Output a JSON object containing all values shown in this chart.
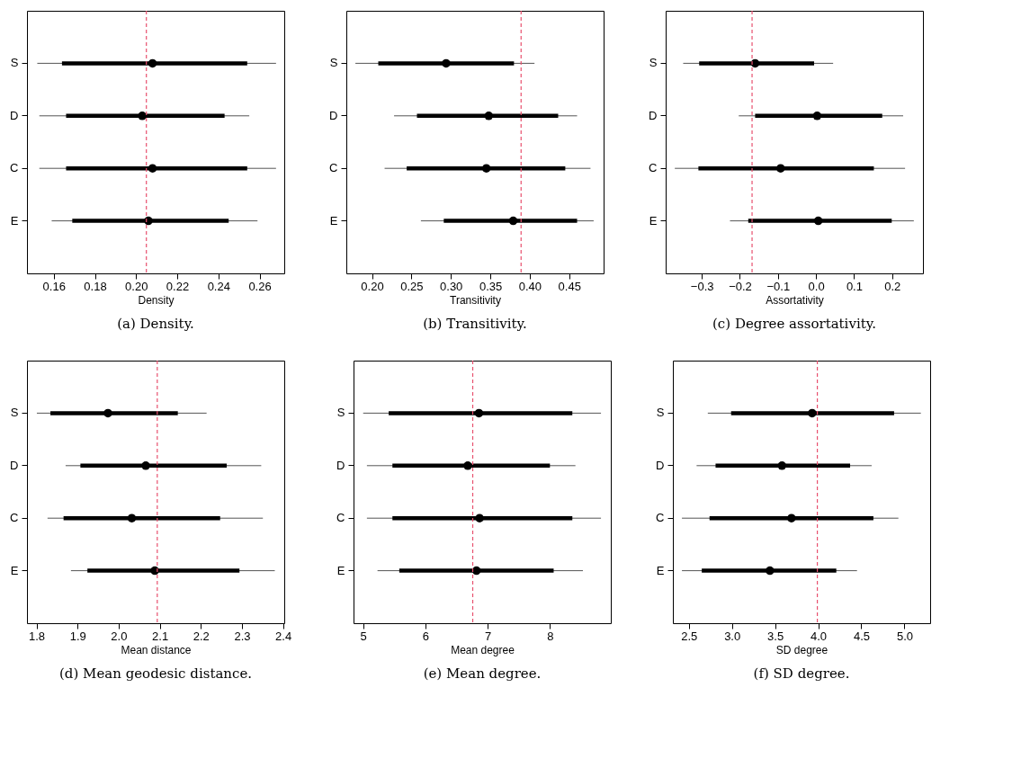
{
  "chart_data": [
    {
      "type": "box",
      "orientation": "horizontal",
      "categories": [
        "S",
        "D",
        "C",
        "E"
      ],
      "xlabel": "Density",
      "xlim": [
        0.147,
        0.272
      ],
      "xticks": [
        0.16,
        0.18,
        {
          "value": 0.2,
          "label": "0.20"
        },
        0.22,
        0.24,
        0.26
      ],
      "annotations": [
        "(a) Density."
      ],
      "ref_lines": [
        {
          "axis": "x",
          "value": 0.205,
          "color": "#e8506e",
          "line_style": "dashed"
        }
      ],
      "boxes": [
        {
          "low": 0.152,
          "q1": 0.164,
          "median": 0.208,
          "q3": 0.254,
          "high": 0.268
        },
        {
          "low": 0.153,
          "q1": 0.166,
          "median": 0.203,
          "q3": 0.243,
          "high": 0.255
        },
        {
          "low": 0.153,
          "q1": 0.166,
          "median": 0.208,
          "q3": 0.254,
          "high": 0.268
        },
        {
          "low": 0.159,
          "q1": 0.169,
          "median": 0.206,
          "q3": 0.245,
          "high": 0.259
        }
      ]
    },
    {
      "type": "box",
      "orientation": "horizontal",
      "categories": [
        "S",
        "D",
        "C",
        "E"
      ],
      "xlabel": "Transitivity",
      "xlim": [
        0.1675,
        0.4936
      ],
      "xticks": [
        {
          "value": 0.2,
          "label": "0.20"
        },
        0.25,
        {
          "value": 0.3,
          "label": "0.30"
        },
        0.35,
        {
          "value": 0.4,
          "label": "0.40"
        },
        0.45
      ],
      "annotations": [
        "(b) Transitivity."
      ],
      "ref_lines": [
        {
          "axis": "x",
          "value": 0.389,
          "color": "#e8506e",
          "line_style": "dashed"
        }
      ],
      "boxes": [
        {
          "low": 0.179,
          "q1": 0.208,
          "median": 0.294,
          "q3": 0.38,
          "high": 0.406
        },
        {
          "low": 0.228,
          "q1": 0.257,
          "median": 0.348,
          "q3": 0.436,
          "high": 0.46
        },
        {
          "low": 0.216,
          "q1": 0.244,
          "median": 0.345,
          "q3": 0.445,
          "high": 0.477
        },
        {
          "low": 0.262,
          "q1": 0.291,
          "median": 0.379,
          "q3": 0.46,
          "high": 0.481
        }
      ]
    },
    {
      "type": "box",
      "orientation": "horizontal",
      "categories": [
        "S",
        "D",
        "C",
        "E"
      ],
      "xlabel": "Assortativity",
      "xlim": [
        -0.395,
        0.281
      ],
      "xticks": [
        {
          "value": -0.3,
          "label": "−0.3"
        },
        {
          "value": -0.2,
          "label": "−0.2"
        },
        {
          "value": -0.1,
          "label": "−0.1"
        },
        {
          "value": 0,
          "label": "0.0"
        },
        0.1,
        0.2
      ],
      "annotations": [
        "(c) Degree assortativity."
      ],
      "ref_lines": [
        {
          "axis": "x",
          "value": -0.168,
          "color": "#e8506e",
          "line_style": "dashed"
        }
      ],
      "boxes": [
        {
          "low": -0.349,
          "q1": -0.307,
          "median": -0.16,
          "q3": -0.005,
          "high": 0.045
        },
        {
          "low": -0.203,
          "q1": -0.16,
          "median": 0.003,
          "q3": 0.174,
          "high": 0.229
        },
        {
          "low": -0.371,
          "q1": -0.309,
          "median": -0.093,
          "q3": 0.152,
          "high": 0.234
        },
        {
          "low": -0.226,
          "q1": -0.178,
          "median": 0.006,
          "q3": 0.199,
          "high": 0.257
        }
      ]
    },
    {
      "type": "box",
      "orientation": "horizontal",
      "categories": [
        "S",
        "D",
        "C",
        "E"
      ],
      "xlabel": "Mean distance",
      "xlim": [
        1.777,
        2.403
      ],
      "xticks": [
        1.8,
        1.9,
        {
          "value": 2,
          "label": "2.0"
        },
        2.1,
        2.2,
        2.3,
        2.4
      ],
      "annotations": [
        "(d) Mean geodesic distance."
      ],
      "ref_lines": [
        {
          "axis": "x",
          "value": 2.094,
          "color": "#e8506e",
          "line_style": "dashed"
        }
      ],
      "boxes": [
        {
          "low": 1.801,
          "q1": 1.834,
          "median": 1.974,
          "q3": 2.144,
          "high": 2.214
        },
        {
          "low": 1.871,
          "q1": 1.907,
          "median": 2.066,
          "q3": 2.263,
          "high": 2.347
        },
        {
          "low": 1.827,
          "q1": 1.866,
          "median": 2.032,
          "q3": 2.247,
          "high": 2.351
        },
        {
          "low": 1.884,
          "q1": 1.924,
          "median": 2.088,
          "q3": 2.294,
          "high": 2.38
        }
      ]
    },
    {
      "type": "box",
      "orientation": "horizontal",
      "categories": [
        "S",
        "D",
        "C",
        "E"
      ],
      "xlabel": "Mean degree",
      "xlim": [
        4.845,
        8.978
      ],
      "xticks": [
        5,
        6,
        7,
        8
      ],
      "annotations": [
        "(e) Mean degree."
      ],
      "ref_lines": [
        {
          "axis": "x",
          "value": 6.76,
          "color": "#e8506e",
          "line_style": "dashed"
        }
      ],
      "boxes": [
        {
          "low": 5.0,
          "q1": 5.41,
          "median": 6.86,
          "q3": 8.36,
          "high": 8.82
        },
        {
          "low": 5.06,
          "q1": 5.47,
          "median": 6.68,
          "q3": 8.0,
          "high": 8.41
        },
        {
          "low": 5.06,
          "q1": 5.47,
          "median": 6.87,
          "q3": 8.36,
          "high": 8.82
        },
        {
          "low": 5.23,
          "q1": 5.58,
          "median": 6.82,
          "q3": 8.06,
          "high": 8.53
        }
      ]
    },
    {
      "type": "box",
      "orientation": "horizontal",
      "categories": [
        "S",
        "D",
        "C",
        "E"
      ],
      "xlabel": "SD degree",
      "xlim": [
        2.315,
        5.298
      ],
      "xticks": [
        2.5,
        {
          "value": 3,
          "label": "3.0"
        },
        3.5,
        {
          "value": 4,
          "label": "4.0"
        },
        4.5,
        {
          "value": 5,
          "label": "5.0"
        }
      ],
      "annotations": [
        "(f) SD degree."
      ],
      "ref_lines": [
        {
          "axis": "x",
          "value": 3.99,
          "color": "#e8506e",
          "line_style": "dashed"
        }
      ],
      "boxes": [
        {
          "low": 2.72,
          "q1": 2.99,
          "median": 3.93,
          "q3": 4.88,
          "high": 5.19
        },
        {
          "low": 2.59,
          "q1": 2.81,
          "median": 3.58,
          "q3": 4.37,
          "high": 4.62
        },
        {
          "low": 2.42,
          "q1": 2.74,
          "median": 3.69,
          "q3": 4.64,
          "high": 4.93
        },
        {
          "low": 2.42,
          "q1": 2.65,
          "median": 3.44,
          "q3": 4.21,
          "high": 4.45
        }
      ]
    }
  ]
}
